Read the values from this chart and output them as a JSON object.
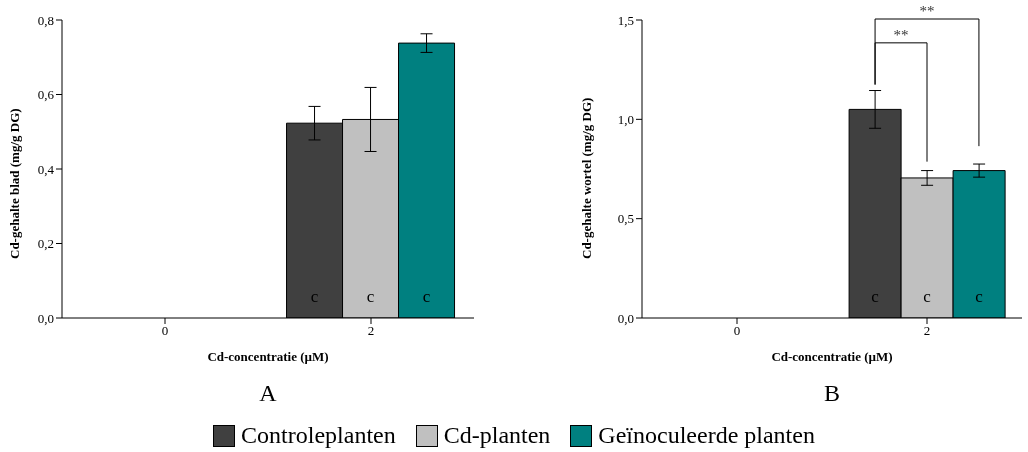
{
  "chart_data": [
    {
      "type": "bar",
      "title": "A",
      "xlabel": "Cd-concentratie (µM)",
      "ylabel": "Cd-gehalte blad (mg/g DG)",
      "categories": [
        "0",
        "2"
      ],
      "series": [
        {
          "name": "Controleplanten",
          "color": "#404040",
          "values": [
            0,
            0.523
          ],
          "errors": [
            null,
            0.045
          ],
          "value_labels": [
            null,
            "c"
          ]
        },
        {
          "name": "Cd-planten",
          "color": "#c0c0c0",
          "values": [
            0,
            0.533
          ],
          "errors": [
            null,
            0.086
          ],
          "value_labels": [
            null,
            "c"
          ]
        },
        {
          "name": "Geïnoculeerde planten",
          "color": "#008080",
          "values": [
            0,
            0.738
          ],
          "errors": [
            null,
            0.025
          ],
          "value_labels": [
            null,
            "c"
          ]
        }
      ],
      "ylim": [
        0,
        0.8
      ],
      "yticks": [
        {
          "value": 0,
          "label": "0,0"
        },
        {
          "value": 0.2,
          "label": "0,2"
        },
        {
          "value": 0.4,
          "label": "0,4"
        },
        {
          "value": 0.6,
          "label": "0,6"
        },
        {
          "value": 0.8,
          "label": "0,8"
        }
      ],
      "grid": false,
      "legend": "bottom"
    },
    {
      "type": "bar",
      "title": "B",
      "xlabel": "Cd-concentratie (µM)",
      "ylabel": "Cd-gehalte wortel (mg/g DG)",
      "categories": [
        "0",
        "2"
      ],
      "series": [
        {
          "color": "#404040",
          "values": [
            0,
            1.05
          ],
          "errors": [
            null,
            0.095
          ],
          "value_labels": [
            null,
            "c"
          ]
        },
        {
          "color": "#c0c0c0",
          "values": [
            0,
            0.705
          ],
          "errors": [
            null,
            0.037
          ],
          "value_labels": [
            null,
            "c"
          ]
        },
        {
          "color": "#008080",
          "values": [
            0,
            0.742
          ],
          "errors": [
            null,
            0.033
          ],
          "value_labels": [
            null,
            "c"
          ]
        }
      ],
      "ylim": [
        0,
        1.5
      ],
      "yticks": [
        {
          "value": 0,
          "label": "0,0"
        },
        {
          "value": 0.5,
          "label": "0,5"
        },
        {
          "value": 1,
          "label": "1,0"
        },
        {
          "value": 1.5,
          "label": "1,5"
        }
      ],
      "annotations": [
        "**",
        "**"
      ],
      "grid": false
    }
  ]
}
